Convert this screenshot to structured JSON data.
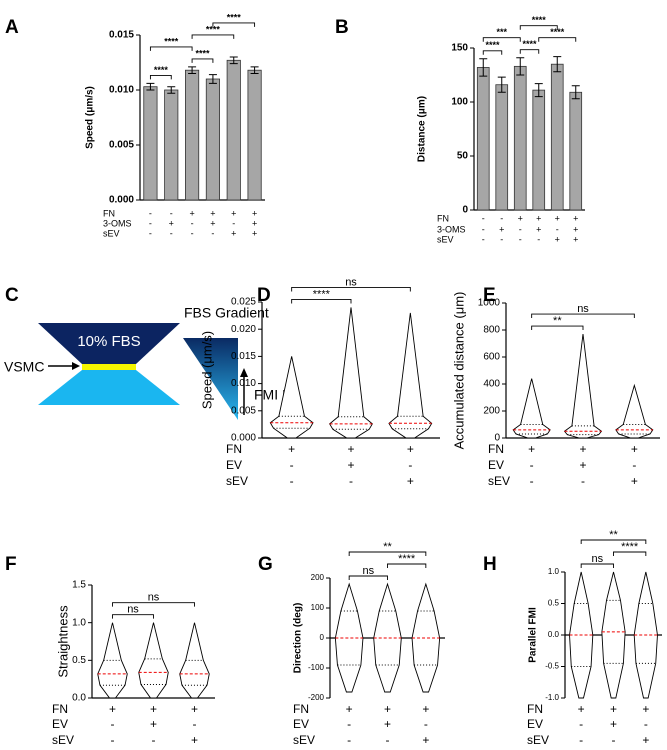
{
  "chart_data": [
    {
      "type": "bar",
      "panel": "A",
      "y_label": "Speed (μm/s)",
      "values": [
        0.0103,
        0.01,
        0.0118,
        0.011,
        0.0127,
        0.0118
      ],
      "errors": [
        0.0003,
        0.0003,
        0.0003,
        0.0004,
        0.0003,
        0.0003
      ],
      "color": "#a6a6a6",
      "ylim": [
        0,
        0.015
      ],
      "yticks": [
        {
          "value": 0,
          "label": "0.000"
        },
        0.005,
        {
          "value": 0.01,
          "label": "0.010"
        },
        0.015
      ],
      "conditions": [
        {
          "name": "FN",
          "values": [
            "-",
            "-",
            "+",
            "+",
            "+",
            "+"
          ]
        },
        {
          "name": "3-OMS",
          "values": [
            "-",
            "+",
            "-",
            "+",
            "-",
            "+"
          ]
        },
        {
          "name": "sEV",
          "values": [
            "-",
            "-",
            "-",
            "-",
            "+",
            "+"
          ]
        }
      ],
      "significance": [
        {
          "groups": [
            0,
            1
          ],
          "label": "****"
        },
        {
          "groups": [
            2,
            3
          ],
          "label": "****"
        },
        {
          "groups": [
            0,
            2
          ],
          "label": "****"
        },
        {
          "groups": [
            2,
            4
          ],
          "label": "****"
        },
        {
          "groups": [
            3,
            5
          ],
          "label": "****"
        }
      ]
    },
    {
      "type": "bar",
      "panel": "B",
      "y_label": "Distance (μm)",
      "values": [
        132,
        116,
        133,
        111,
        135,
        109
      ],
      "errors": [
        8,
        7,
        8,
        6,
        7,
        6
      ],
      "color": "#a6a6a6",
      "ylim": [
        0,
        150
      ],
      "yticks": [
        0,
        50,
        100,
        150
      ],
      "conditions": [
        {
          "name": "FN",
          "values": [
            "-",
            "-",
            "+",
            "+",
            "+",
            "+"
          ]
        },
        {
          "name": "3-OMS",
          "values": [
            "-",
            "+",
            "-",
            "+",
            "-",
            "+"
          ]
        },
        {
          "name": "sEV",
          "values": [
            "-",
            "-",
            "-",
            "-",
            "+",
            "+"
          ]
        }
      ],
      "significance": [
        {
          "groups": [
            0,
            1
          ],
          "label": "****"
        },
        {
          "groups": [
            2,
            3
          ],
          "label": "****"
        },
        {
          "groups": [
            0,
            2
          ],
          "label": "***"
        },
        {
          "groups": [
            3,
            5
          ],
          "label": "****"
        },
        {
          "groups": [
            2,
            4
          ],
          "label": "****"
        }
      ]
    },
    {
      "type": "violin",
      "panel": "D",
      "y_label": "Speed (μm/s)",
      "groups": [
        {
          "min": 0,
          "q1": 0.0018,
          "median": 0.0028,
          "q3": 0.004,
          "max": 0.015
        },
        {
          "min": 0,
          "q1": 0.0016,
          "median": 0.0026,
          "q3": 0.0039,
          "max": 0.024
        },
        {
          "min": 0,
          "q1": 0.0017,
          "median": 0.0027,
          "q3": 0.004,
          "max": 0.023
        }
      ],
      "ylim": [
        0,
        0.025
      ],
      "yticks": [
        {
          "value": 0,
          "label": "0.000"
        },
        0.005,
        {
          "value": 0.01,
          "label": "0.010"
        },
        0.015,
        {
          "value": 0.02,
          "label": "0.020"
        },
        0.025
      ],
      "conditions": [
        {
          "name": "FN",
          "values": [
            "+",
            "+",
            "+"
          ]
        },
        {
          "name": "EV",
          "values": [
            "-",
            "+",
            "-"
          ]
        },
        {
          "name": "sEV",
          "values": [
            "-",
            "-",
            "+"
          ]
        }
      ],
      "significance": [
        {
          "groups": [
            0,
            1
          ],
          "label": "****"
        },
        {
          "groups": [
            0,
            2
          ],
          "label": "ns"
        }
      ]
    },
    {
      "type": "violin",
      "panel": "E",
      "y_label": "Accumulated distance (μm)",
      "groups": [
        {
          "min": 0,
          "q1": 30,
          "median": 60,
          "q3": 100,
          "max": 440
        },
        {
          "min": 0,
          "q1": 25,
          "median": 50,
          "q3": 90,
          "max": 770
        },
        {
          "min": 0,
          "q1": 30,
          "median": 60,
          "q3": 100,
          "max": 390
        }
      ],
      "ylim": [
        0,
        1000
      ],
      "yticks": [
        0,
        200,
        400,
        600,
        800,
        1000
      ],
      "conditions": [
        {
          "name": "FN",
          "values": [
            "+",
            "+",
            "+"
          ]
        },
        {
          "name": "EV",
          "values": [
            "-",
            "+",
            "-"
          ]
        },
        {
          "name": "sEV",
          "values": [
            "-",
            "-",
            "+"
          ]
        }
      ],
      "significance": [
        {
          "groups": [
            0,
            1
          ],
          "label": "**"
        },
        {
          "groups": [
            0,
            2
          ],
          "label": "ns"
        }
      ]
    },
    {
      "type": "violin",
      "panel": "F",
      "y_label": "Straightness",
      "groups": [
        {
          "min": 0,
          "q1": 0.17,
          "median": 0.32,
          "q3": 0.5,
          "max": 1.0
        },
        {
          "min": 0,
          "q1": 0.18,
          "median": 0.34,
          "q3": 0.52,
          "max": 1.0
        },
        {
          "min": 0,
          "q1": 0.17,
          "median": 0.32,
          "q3": 0.5,
          "max": 1.0
        }
      ],
      "ylim": [
        0,
        1.5
      ],
      "yticks": [
        {
          "value": 0,
          "label": "0.0"
        },
        0.5,
        {
          "value": 1,
          "label": "1.0"
        },
        1.5
      ],
      "conditions": [
        {
          "name": "FN",
          "values": [
            "+",
            "+",
            "+"
          ]
        },
        {
          "name": "EV",
          "values": [
            "-",
            "+",
            "-"
          ]
        },
        {
          "name": "sEV",
          "values": [
            "-",
            "-",
            "+"
          ]
        }
      ],
      "significance": [
        {
          "groups": [
            0,
            1
          ],
          "label": "ns"
        },
        {
          "groups": [
            0,
            2
          ],
          "label": "ns"
        }
      ]
    },
    {
      "type": "violin",
      "panel": "G",
      "y_label": "Direction (deg)",
      "groups": [
        {
          "min": -180,
          "q1": -90,
          "median": 0,
          "q3": 90,
          "max": 180
        },
        {
          "min": -180,
          "q1": -90,
          "median": 0,
          "q3": 90,
          "max": 180
        },
        {
          "min": -180,
          "q1": -90,
          "median": 0,
          "q3": 90,
          "max": 180
        }
      ],
      "ylim": [
        -200,
        200
      ],
      "yticks": [
        -200,
        -100,
        0,
        100,
        200
      ],
      "conditions": [
        {
          "name": "FN",
          "values": [
            "+",
            "+",
            "+"
          ]
        },
        {
          "name": "EV",
          "values": [
            "-",
            "+",
            "-"
          ]
        },
        {
          "name": "sEV",
          "values": [
            "-",
            "-",
            "+"
          ]
        }
      ],
      "significance": [
        {
          "groups": [
            0,
            1
          ],
          "label": "ns"
        },
        {
          "groups": [
            1,
            2
          ],
          "label": "****"
        },
        {
          "groups": [
            0,
            2
          ],
          "label": "**"
        }
      ]
    },
    {
      "type": "violin",
      "panel": "H",
      "y_label": "Parallel FMI",
      "groups": [
        {
          "min": -1,
          "q1": -0.5,
          "median": 0,
          "q3": 0.5,
          "max": 1
        },
        {
          "min": -1,
          "q1": -0.45,
          "median": 0.05,
          "q3": 0.55,
          "max": 1
        },
        {
          "min": -1,
          "q1": -0.45,
          "median": 0,
          "q3": 0.5,
          "max": 1
        }
      ],
      "ylim": [
        -1,
        1
      ],
      "yticks": [
        {
          "value": -1,
          "label": "-1.0"
        },
        -0.5,
        {
          "value": 0,
          "label": "0.0"
        },
        0.5,
        {
          "value": 1,
          "label": "1.0"
        }
      ],
      "conditions": [
        {
          "name": "FN",
          "values": [
            "+",
            "+",
            "+"
          ]
        },
        {
          "name": "EV",
          "values": [
            "-",
            "+",
            "-"
          ]
        },
        {
          "name": "sEV",
          "values": [
            "-",
            "-",
            "+"
          ]
        }
      ],
      "significance": [
        {
          "groups": [
            0,
            1
          ],
          "label": "ns"
        },
        {
          "groups": [
            1,
            2
          ],
          "label": "****"
        },
        {
          "groups": [
            0,
            2
          ],
          "label": "**"
        }
      ]
    }
  ],
  "diagram": {
    "panel": "C",
    "chamber_label": "10% FBS",
    "cell_label": "VSMC",
    "gradient_label": "FBS Gradient",
    "direction_label": "FMI II"
  }
}
